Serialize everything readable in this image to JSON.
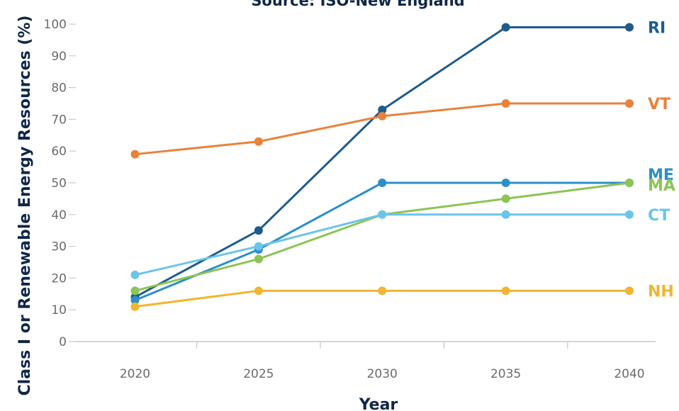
{
  "chart_data": {
    "type": "line",
    "title": "Source: ISO-New England",
    "xlabel": "Year",
    "ylabel": "Class I or Renewable Energy Resources (%)",
    "x": [
      2020,
      2025,
      2030,
      2035,
      2040
    ],
    "xlim": [
      2017,
      2041.5
    ],
    "ylim": [
      0,
      100
    ],
    "yticks": [
      0,
      10,
      20,
      30,
      40,
      50,
      60,
      70,
      80,
      90,
      100
    ],
    "grid": false,
    "legend": "right-end labels",
    "series": [
      {
        "name": "RI",
        "color": "#1f5c8b",
        "values": [
          14,
          35,
          73,
          99,
          99
        ]
      },
      {
        "name": "VT",
        "color": "#e8823a",
        "values": [
          59,
          63,
          71,
          75,
          75
        ]
      },
      {
        "name": "ME",
        "color": "#2b8fca",
        "values": [
          13,
          29,
          50,
          50,
          50
        ]
      },
      {
        "name": "MA",
        "color": "#8cc456",
        "values": [
          16,
          26,
          40,
          45,
          50
        ]
      },
      {
        "name": "CT",
        "color": "#6cc4ea",
        "values": [
          21,
          30,
          40,
          40,
          40
        ]
      },
      {
        "name": "NH",
        "color": "#f2b431",
        "values": [
          11,
          16,
          16,
          16,
          16
        ]
      }
    ]
  }
}
